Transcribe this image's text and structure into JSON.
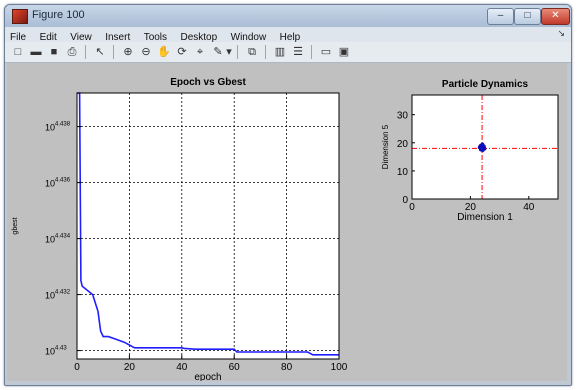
{
  "window": {
    "title": "Figure 100",
    "minimize_label": "–",
    "maximize_label": "□",
    "close_label": "✕"
  },
  "menu": {
    "items": [
      "File",
      "Edit",
      "View",
      "Insert",
      "Tools",
      "Desktop",
      "Window",
      "Help"
    ],
    "arrow": "↘"
  },
  "toolbar": {
    "icons": [
      "new-figure-icon",
      "open-file-icon",
      "save-icon",
      "print-icon",
      "pointer-icon",
      "zoom-in-icon",
      "zoom-out-icon",
      "pan-icon",
      "rotate-3d-icon",
      "data-cursor-icon",
      "brush-icon",
      "brush-menu-icon",
      "link-plot-icon",
      "colorbar-icon",
      "legend-icon",
      "hide-plot-tools-icon",
      "show-plot-tools-icon"
    ],
    "glyphs": [
      "□",
      "▬",
      "■",
      "⎙",
      "↖",
      "⊕",
      "⊖",
      "✋",
      "⟳",
      "⌖",
      "✎",
      "▾",
      "⧉",
      "▥",
      "☰",
      "▭",
      "▣"
    ]
  },
  "chart_data": [
    {
      "type": "line",
      "title": "Epoch vs Gbest",
      "xlabel": "epoch",
      "ylabel": "gbest",
      "xlim": [
        0,
        100
      ],
      "xticks": [
        0,
        20,
        40,
        60,
        80,
        100
      ],
      "yscale": "log",
      "yticks": [
        "10^{4.43}",
        "10^{4.432}",
        "10^{4.434}",
        "10^{4.436}",
        "10^{4.438}"
      ],
      "ytick_exponents": [
        4.43,
        4.432,
        4.434,
        4.436,
        4.438
      ],
      "ylim_exponent": [
        4.4297,
        4.4392
      ],
      "grid": true,
      "series": [
        {
          "color": "#1f1fff",
          "x": [
            0,
            0.5,
            1,
            1.5,
            2,
            6,
            8,
            9,
            10,
            12,
            15,
            18,
            20,
            21,
            22,
            25,
            30,
            40,
            41,
            45,
            55,
            60,
            61,
            70,
            80,
            88,
            90,
            92,
            100
          ],
          "y_exponent": [
            4.4392,
            4.4392,
            4.4392,
            4.4325,
            4.4323,
            4.432,
            4.4314,
            4.4307,
            4.4305,
            4.4305,
            4.4304,
            4.4303,
            4.4302,
            4.43015,
            4.4301,
            4.4301,
            4.4301,
            4.4301,
            4.43008,
            4.43005,
            4.43005,
            4.43005,
            4.42995,
            4.42995,
            4.42995,
            4.42995,
            4.42985,
            4.42985,
            4.42985
          ]
        }
      ]
    },
    {
      "type": "scatter",
      "title": "Particle Dynamics",
      "xlabel": "Dimension 1",
      "ylabel": "Dimension 5",
      "xlim": [
        0,
        50
      ],
      "ylim": [
        0,
        37
      ],
      "xticks": [
        0,
        20,
        40
      ],
      "yticks": [
        0,
        10,
        20,
        30
      ],
      "grid": false,
      "crosshair": {
        "x": 24,
        "y": 18,
        "color": "#ff0000"
      },
      "points": {
        "color": "#1010cc",
        "x": [
          23.2,
          23.6,
          24.0,
          24.4,
          24.8,
          23.5,
          24.2,
          24.6,
          23.9,
          24.1
        ],
        "y": [
          18.4,
          17.6,
          19.0,
          18.2,
          17.9,
          18.9,
          17.4,
          18.7,
          18.1,
          19.4
        ]
      }
    }
  ]
}
